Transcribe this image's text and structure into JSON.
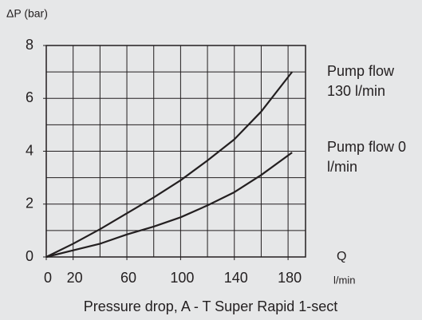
{
  "chart_data": {
    "type": "line",
    "title": "Pressure drop, A - T Super Rapid 1-sect",
    "ylabel": "ΔP (bar)",
    "xlabel": "Q",
    "xunit": "l/min",
    "x": [
      0,
      20,
      40,
      60,
      80,
      100,
      120,
      140,
      160,
      183
    ],
    "series": [
      {
        "name": "Pump flow 130 l/min",
        "color": "#231f20",
        "values": [
          0,
          0.5,
          1.05,
          1.65,
          2.25,
          2.9,
          3.65,
          4.45,
          5.5,
          7.0
        ]
      },
      {
        "name": "Pump flow 0 l/min",
        "color": "#231f20",
        "values": [
          0,
          0.25,
          0.5,
          0.85,
          1.15,
          1.5,
          1.95,
          2.45,
          3.1,
          3.95
        ]
      }
    ],
    "xlim": [
      0,
      193
    ],
    "ylim": [
      0,
      8
    ],
    "xticks": [
      0,
      20,
      60,
      100,
      140,
      180
    ],
    "yticks": [
      0,
      2,
      4,
      6,
      8
    ],
    "xgrid": [
      20,
      40,
      60,
      80,
      100,
      120,
      140,
      160,
      180
    ],
    "ygrid": [
      1,
      2,
      3,
      4,
      5,
      6,
      7
    ],
    "grid": true
  }
}
